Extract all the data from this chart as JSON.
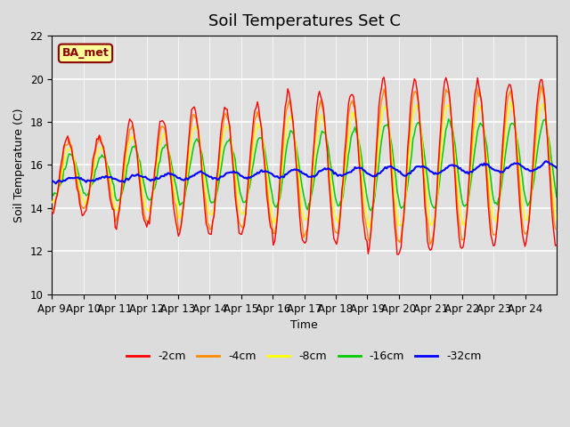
{
  "title": "Soil Temperatures Set C",
  "xlabel": "Time",
  "ylabel": "Soil Temperature (C)",
  "ylim": [
    10,
    22
  ],
  "yticks": [
    10,
    12,
    14,
    16,
    18,
    20,
    22
  ],
  "x_tick_labels": [
    "Apr 9",
    "Apr 10",
    "Apr 11",
    "Apr 12",
    "Apr 13",
    "Apr 14",
    "Apr 15",
    "Apr 16",
    "Apr 17",
    "Apr 18",
    "Apr 19",
    "Apr 20",
    "Apr 21",
    "Apr 22",
    "Apr 23",
    "Apr 24"
  ],
  "colors": {
    "-2cm": "#ff0000",
    "-4cm": "#ff8c00",
    "-8cm": "#ffff00",
    "-16cm": "#00cc00",
    "-32cm": "#0000ff"
  },
  "legend_labels": [
    "-2cm",
    "-4cm",
    "-8cm",
    "-16cm",
    "-32cm"
  ],
  "annotation_text": "BA_met",
  "annotation_color": "#8b0000",
  "annotation_bg": "#ffff99",
  "background_color": "#e0e0e0",
  "grid_color": "#ffffff",
  "title_fontsize": 13,
  "label_fontsize": 9,
  "tick_fontsize": 8.5
}
